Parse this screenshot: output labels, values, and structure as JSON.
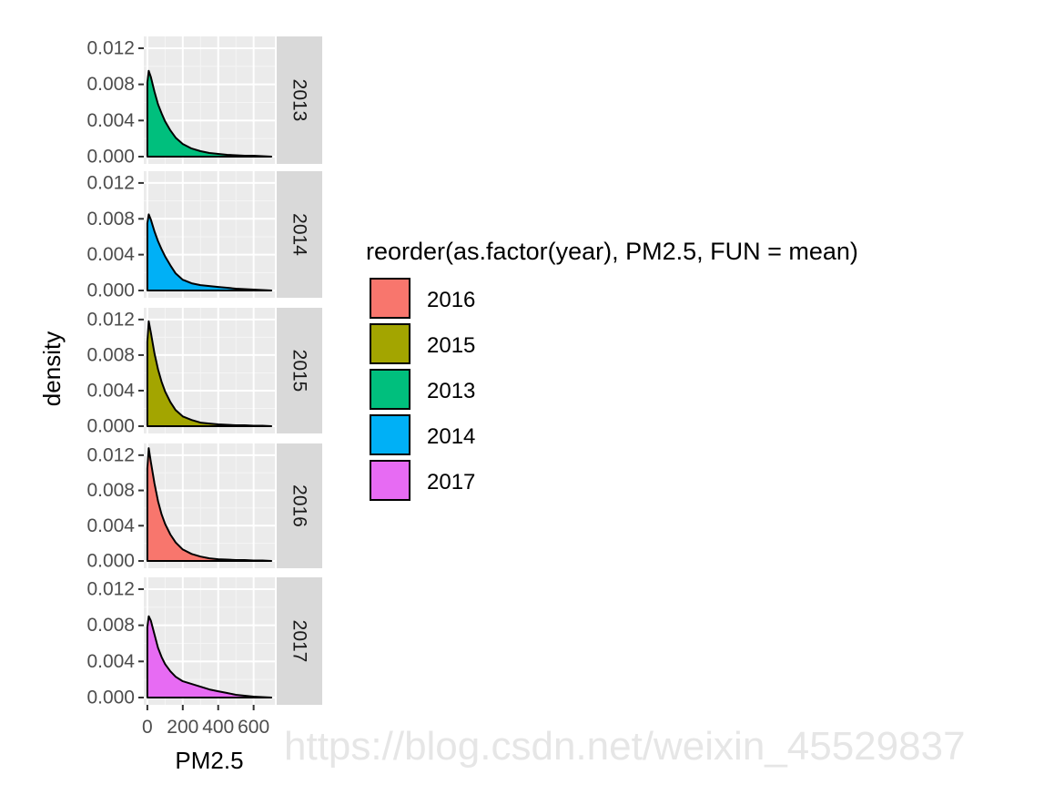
{
  "chart_data": {
    "type": "area",
    "facets": [
      "2013",
      "2014",
      "2015",
      "2016",
      "2017"
    ],
    "xlabel": "PM2.5",
    "ylabel": "density",
    "x_ticks": [
      "0",
      "200",
      "400",
      "600"
    ],
    "y_ticks": [
      "0.000",
      "0.004",
      "0.008",
      "0.012"
    ],
    "xlim": [
      -20,
      720
    ],
    "ylim": [
      0,
      0.0125
    ],
    "grid": true,
    "legend_title": "reorder(as.factor(year), PM2.5, FUN = mean)",
    "legend_position": "right",
    "legend": [
      {
        "label": "2016",
        "color": "#F8766D"
      },
      {
        "label": "2015",
        "color": "#A3A500"
      },
      {
        "label": "2013",
        "color": "#00BF7D"
      },
      {
        "label": "2014",
        "color": "#00B0F6"
      },
      {
        "label": "2017",
        "color": "#E76BF3"
      }
    ],
    "series": [
      {
        "name": "2013",
        "color": "#00BF7D",
        "x": [
          0,
          8,
          20,
          40,
          60,
          80,
          100,
          130,
          160,
          200,
          250,
          300,
          350,
          400,
          450,
          500,
          550,
          600,
          650,
          700
        ],
        "values": [
          0.0082,
          0.0095,
          0.0088,
          0.0072,
          0.0058,
          0.0048,
          0.0039,
          0.0029,
          0.0021,
          0.0014,
          0.0009,
          0.0006,
          0.0004,
          0.0003,
          0.0002,
          0.00015,
          0.0001,
          0.0001,
          5e-05,
          0.0
        ]
      },
      {
        "name": "2014",
        "color": "#00B0F6",
        "x": [
          0,
          8,
          20,
          40,
          60,
          80,
          100,
          130,
          160,
          200,
          250,
          300,
          350,
          400,
          450,
          500,
          550,
          600,
          650,
          700
        ],
        "values": [
          0.0075,
          0.0085,
          0.0079,
          0.0066,
          0.0055,
          0.0046,
          0.0038,
          0.0028,
          0.0019,
          0.0012,
          0.0008,
          0.0006,
          0.0005,
          0.0004,
          0.0003,
          0.0002,
          0.00015,
          0.0001,
          5e-05,
          0.0
        ]
      },
      {
        "name": "2015",
        "color": "#A3A500",
        "x": [
          0,
          8,
          20,
          40,
          60,
          80,
          100,
          130,
          160,
          200,
          250,
          300,
          350,
          400,
          450,
          500,
          550,
          600,
          650,
          700
        ],
        "values": [
          0.0095,
          0.0118,
          0.0105,
          0.0082,
          0.0064,
          0.005,
          0.0039,
          0.0027,
          0.0018,
          0.0011,
          0.0007,
          0.0004,
          0.0003,
          0.0002,
          0.00015,
          0.0001,
          0.0001,
          5e-05,
          5e-05,
          0.0
        ]
      },
      {
        "name": "2016",
        "color": "#F8766D",
        "x": [
          0,
          8,
          20,
          40,
          60,
          80,
          100,
          130,
          160,
          200,
          250,
          300,
          350,
          400,
          450,
          500,
          550,
          600,
          650,
          700
        ],
        "values": [
          0.0105,
          0.0128,
          0.0112,
          0.0088,
          0.0068,
          0.0053,
          0.0042,
          0.003,
          0.0021,
          0.0013,
          0.0008,
          0.0005,
          0.0003,
          0.0002,
          0.00015,
          0.0001,
          0.0001,
          5e-05,
          5e-05,
          0.0
        ]
      },
      {
        "name": "2017",
        "color": "#E76BF3",
        "x": [
          0,
          8,
          20,
          40,
          60,
          80,
          100,
          130,
          160,
          200,
          250,
          300,
          350,
          400,
          450,
          500,
          550,
          600,
          650,
          700
        ],
        "values": [
          0.0078,
          0.009,
          0.0085,
          0.007,
          0.0055,
          0.0045,
          0.0037,
          0.0029,
          0.0023,
          0.0018,
          0.0015,
          0.0012,
          0.0009,
          0.0007,
          0.0005,
          0.0003,
          0.0002,
          0.0001,
          5e-05,
          0.0
        ]
      }
    ]
  },
  "watermark": "https://blog.csdn.net/weixin_45529837"
}
